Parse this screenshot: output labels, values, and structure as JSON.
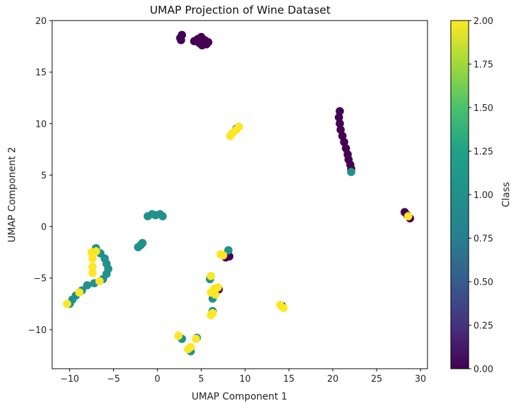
{
  "chart_data": {
    "type": "scatter",
    "title": "UMAP Projection of Wine Dataset",
    "xlabel": "UMAP Component 1",
    "ylabel": "UMAP Component 2",
    "xlim": [
      -12,
      30.8
    ],
    "ylim": [
      -13.8,
      20
    ],
    "xticks": [
      -10,
      -5,
      0,
      5,
      10,
      15,
      20,
      25,
      30
    ],
    "yticks": [
      -10,
      -5,
      0,
      5,
      10,
      15,
      20
    ],
    "grid": false,
    "colormap": "viridis",
    "class_colors": {
      "0": "#440154",
      "1": "#21918c",
      "2": "#fde725"
    },
    "colorbar": {
      "label": "Class",
      "range": [
        0,
        2
      ],
      "ticks": [
        "0.00",
        "0.25",
        "0.50",
        "0.75",
        "1.00",
        "1.25",
        "1.50",
        "1.75",
        "2.00"
      ]
    },
    "points": [
      [
        2.6,
        18.3,
        0
      ],
      [
        2.8,
        18.6,
        0
      ],
      [
        2.7,
        18.1,
        0
      ],
      [
        4.2,
        18.0,
        0
      ],
      [
        4.6,
        18.2,
        0
      ],
      [
        5.0,
        18.4,
        0
      ],
      [
        5.4,
        18.1,
        0
      ],
      [
        5.8,
        17.9,
        0
      ],
      [
        5.1,
        17.6,
        0
      ],
      [
        4.8,
        17.8,
        0
      ],
      [
        5.6,
        17.7,
        0
      ],
      [
        20.8,
        11.2,
        0
      ],
      [
        20.7,
        10.6,
        0
      ],
      [
        20.8,
        10.0,
        0
      ],
      [
        20.9,
        9.4,
        0
      ],
      [
        21.1,
        8.8,
        0
      ],
      [
        21.3,
        8.2,
        0
      ],
      [
        21.5,
        7.6,
        0
      ],
      [
        21.7,
        7.0,
        0
      ],
      [
        21.8,
        6.5,
        0
      ],
      [
        22.0,
        6.0,
        0
      ],
      [
        22.1,
        5.6,
        0
      ],
      [
        22.1,
        5.3,
        1
      ],
      [
        28.2,
        1.4,
        0
      ],
      [
        28.5,
        1.1,
        0
      ],
      [
        28.8,
        0.8,
        0
      ],
      [
        28.6,
        1.0,
        2
      ],
      [
        8.0,
        -2.6,
        0
      ],
      [
        8.2,
        -2.9,
        0
      ],
      [
        7.8,
        -3.0,
        0
      ],
      [
        7.0,
        -6.1,
        0
      ],
      [
        14.2,
        -7.7,
        0
      ],
      [
        -1.1,
        1.0,
        1
      ],
      [
        -0.6,
        1.2,
        1
      ],
      [
        -0.2,
        1.1,
        1
      ],
      [
        0.3,
        1.2,
        1
      ],
      [
        0.6,
        1.0,
        1
      ],
      [
        -2.2,
        -2.0,
        1
      ],
      [
        -1.9,
        -1.8,
        1
      ],
      [
        -1.7,
        -1.6,
        1
      ],
      [
        -7.0,
        -2.1,
        1
      ],
      [
        -6.5,
        -2.6,
        1
      ],
      [
        -6.0,
        -3.1,
        1
      ],
      [
        -5.8,
        -3.6,
        1
      ],
      [
        -5.6,
        -4.1,
        1
      ],
      [
        -5.8,
        -4.6,
        1
      ],
      [
        -6.2,
        -5.1,
        1
      ],
      [
        -7.2,
        -5.5,
        1
      ],
      [
        -8.0,
        -5.7,
        1
      ],
      [
        -8.6,
        -6.2,
        1
      ],
      [
        -9.3,
        -6.7,
        1
      ],
      [
        -9.7,
        -7.1,
        1
      ],
      [
        -10.0,
        -7.5,
        1
      ],
      [
        8.1,
        -2.3,
        1
      ],
      [
        6.3,
        -7.0,
        1
      ],
      [
        6.0,
        -5.1,
        1
      ],
      [
        6.3,
        -8.2,
        1
      ],
      [
        2.8,
        -10.9,
        1
      ],
      [
        3.8,
        -12.1,
        1
      ],
      [
        4.5,
        -10.8,
        1
      ],
      [
        9.0,
        9.5,
        1
      ],
      [
        -7.5,
        -2.5,
        2
      ],
      [
        -7.4,
        -3.1,
        2
      ],
      [
        -7.4,
        -3.9,
        2
      ],
      [
        -7.4,
        -4.5,
        2
      ],
      [
        -6.6,
        -5.3,
        2
      ],
      [
        -8.9,
        -6.4,
        2
      ],
      [
        -10.3,
        -7.5,
        2
      ],
      [
        -7.0,
        -2.4,
        2
      ],
      [
        8.3,
        8.8,
        2
      ],
      [
        8.6,
        9.1,
        2
      ],
      [
        9.0,
        9.4,
        2
      ],
      [
        9.3,
        9.7,
        2
      ],
      [
        7.5,
        -2.8,
        2
      ],
      [
        7.2,
        -2.7,
        2
      ],
      [
        6.1,
        -4.8,
        2
      ],
      [
        6.5,
        -6.0,
        2
      ],
      [
        6.1,
        -6.4,
        2
      ],
      [
        6.9,
        -5.9,
        2
      ],
      [
        6.6,
        -6.6,
        2
      ],
      [
        6.3,
        -8.4,
        2
      ],
      [
        6.1,
        -8.6,
        2
      ],
      [
        14.0,
        -7.6,
        2
      ],
      [
        14.4,
        -7.9,
        2
      ],
      [
        2.4,
        -10.6,
        2
      ],
      [
        4.4,
        -10.9,
        2
      ],
      [
        3.8,
        -11.7,
        2
      ],
      [
        3.5,
        -11.9,
        2
      ]
    ]
  }
}
